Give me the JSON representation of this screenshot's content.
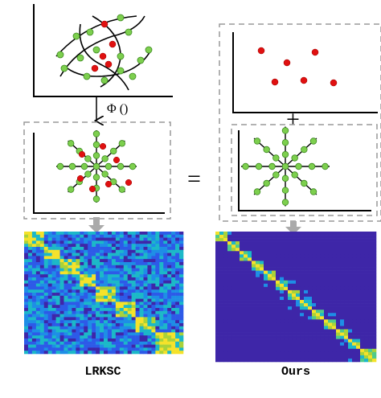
{
  "mapping": {
    "label": "Φ ()"
  },
  "operators": {
    "equals": "=",
    "plus": "+"
  },
  "panels": [
    {
      "label": "LRKSC"
    },
    {
      "label": "Ours"
    }
  ]
}
